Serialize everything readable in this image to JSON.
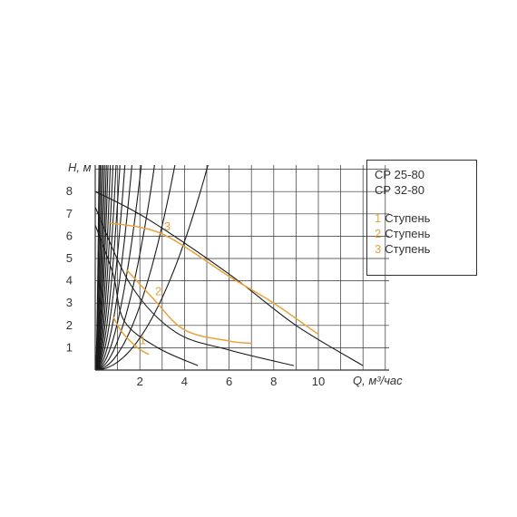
{
  "chart_data": {
    "type": "line",
    "title": "",
    "xlabel": "Q, м³/час",
    "ylabel": "Н, м",
    "xlim": [
      0,
      13
    ],
    "ylim": [
      0,
      9
    ],
    "x_ticks": [
      "2",
      "4",
      "6",
      "8",
      "10"
    ],
    "y_ticks": [
      "1",
      "2",
      "3",
      "4",
      "5",
      "6",
      "7",
      "8"
    ],
    "grid": true,
    "legend_position": "right",
    "colors": {
      "grid": "#333333",
      "curve": "#1a1a1a",
      "highlight": "#e8a33a"
    },
    "series": [
      {
        "name": "3",
        "x": [
          0.6,
          3.0,
          6.0,
          8.0,
          10.0
        ],
        "y": [
          6.6,
          6.1,
          4.2,
          3.0,
          1.6
        ]
      },
      {
        "name": "2",
        "x": [
          1.4,
          2.6,
          4.0,
          6.0,
          7.0
        ],
        "y": [
          4.5,
          3.2,
          1.8,
          1.3,
          1.2
        ]
      },
      {
        "name": "1",
        "x": [
          0.8,
          1.2,
          1.9,
          2.4
        ],
        "y": [
          2.4,
          1.7,
          1.0,
          0.7
        ]
      }
    ],
    "performance_curves": [
      {
        "x": [
          0,
          2.3,
          6.0,
          9.0,
          12.0
        ],
        "y": [
          8.0,
          6.8,
          4.3,
          2.0,
          0.2
        ]
      },
      {
        "x": [
          0,
          1.6,
          3.6,
          6.0,
          8.9
        ],
        "y": [
          7.3,
          3.8,
          1.7,
          0.9,
          0.2
        ]
      },
      {
        "x": [
          0,
          0.8,
          1.3,
          2.8,
          4.6
        ],
        "y": [
          6.5,
          4.3,
          2.2,
          1.0,
          0.2
        ]
      }
    ],
    "system_curves_k": [
      320,
      190,
      115,
      75,
      52,
      37,
      28,
      20,
      14.5,
      10.5,
      7.5,
      5.2,
      3.4,
      2.15,
      1.3,
      0.72,
      0.36
    ]
  },
  "legend": {
    "models": [
      "СР 25-80",
      "СР 32-80"
    ],
    "items": [
      {
        "num": "1",
        "label": "Ступень"
      },
      {
        "num": "2",
        "label": "Ступень"
      },
      {
        "num": "3",
        "label": "Ступень"
      }
    ]
  }
}
